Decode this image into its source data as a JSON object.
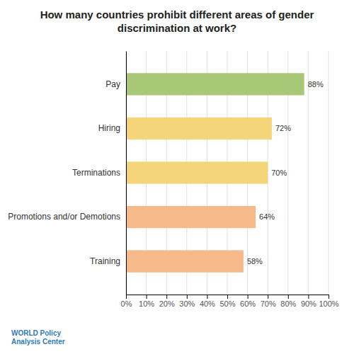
{
  "chart_data": {
    "type": "bar",
    "orientation": "horizontal",
    "title": "How many countries prohibit different areas of gender\ndiscrimination at work?",
    "categories": [
      "Training",
      "Promotions and/or Demotions",
      "Terminations",
      "Hiring",
      "Pay"
    ],
    "values": [
      58,
      64,
      70,
      72,
      88
    ],
    "value_labels": [
      "58%",
      "64%",
      "70%",
      "72%",
      "88%"
    ],
    "colors": [
      "#F5B98A",
      "#F5B98A",
      "#F5D57A",
      "#F5D57A",
      "#A8C878"
    ],
    "data_labels": true,
    "xlim": [
      0,
      100
    ],
    "xticks": [
      {
        "value": 0,
        "label": "0%"
      },
      {
        "value": 10,
        "label": "10%"
      },
      {
        "value": 20,
        "label": "20%"
      },
      {
        "value": 30,
        "label": "30%"
      },
      {
        "value": 40,
        "label": "40%"
      },
      {
        "value": 50,
        "label": "50%"
      },
      {
        "value": 60,
        "label": "60%"
      },
      {
        "value": 70,
        "label": "70%"
      },
      {
        "value": 80,
        "label": "80%"
      },
      {
        "value": 90,
        "label": "90%"
      },
      {
        "value": 100,
        "label": "100%"
      }
    ],
    "grid": true,
    "annotations": [
      "WORLD Policy",
      "Analysis Center"
    ]
  }
}
